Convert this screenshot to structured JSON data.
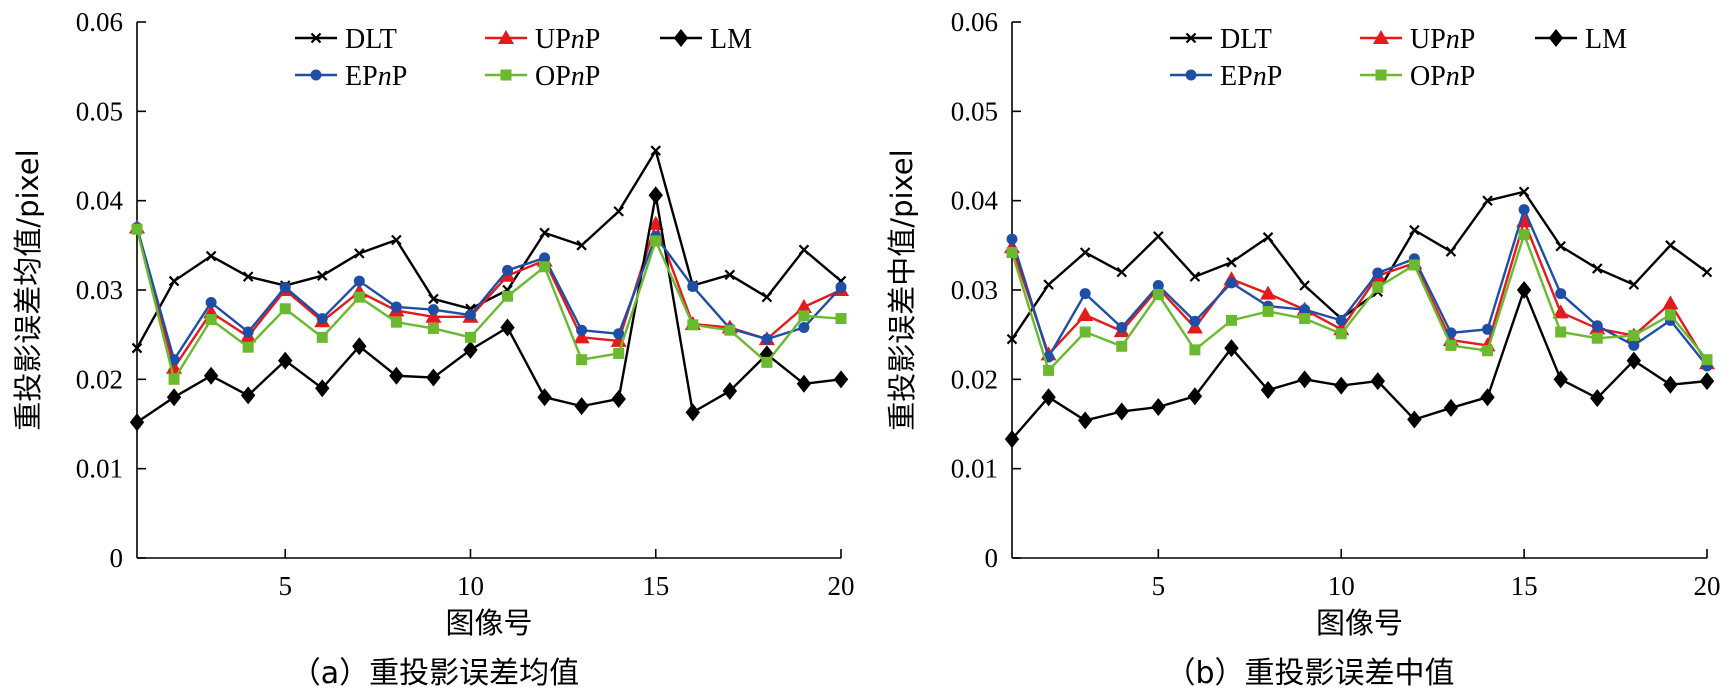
{
  "chart_data": [
    {
      "type": "line",
      "caption": "（a）重投影误差均值",
      "xlabel": "图像号",
      "ylabel": "重投影误差均值/pixel",
      "x": [
        1,
        2,
        3,
        4,
        5,
        6,
        7,
        8,
        9,
        10,
        11,
        12,
        13,
        14,
        15,
        16,
        17,
        18,
        19,
        20
      ],
      "xlim": [
        1,
        20
      ],
      "xticks": [
        5,
        10,
        15,
        20
      ],
      "ylim": [
        0,
        0.06
      ],
      "yticks": [
        0,
        0.01,
        0.02,
        0.03,
        0.04,
        0.05,
        0.06
      ],
      "ytick_labels": [
        "0",
        "0.01",
        "0.02",
        "0.03",
        "0.04",
        "0.05",
        "0.06"
      ],
      "legend_position": "top-center",
      "series": [
        {
          "name": "DLT",
          "name_prefix": "DLT",
          "name_italic": "",
          "name_suffix": "",
          "color": "#000000",
          "marker": "x",
          "values": [
            0.0235,
            0.031,
            0.0338,
            0.0315,
            0.0305,
            0.0316,
            0.0341,
            0.0356,
            0.029,
            0.0279,
            0.03,
            0.0364,
            0.035,
            0.0388,
            0.0456,
            0.0305,
            0.0317,
            0.0292,
            0.0345,
            0.031
          ]
        },
        {
          "name": "UPnP",
          "name_prefix": "UP",
          "name_italic": "n",
          "name_suffix": "P",
          "color": "#e41a1c",
          "marker": "triangle",
          "values": [
            0.037,
            0.0213,
            0.0275,
            0.0248,
            0.03,
            0.0265,
            0.0298,
            0.0277,
            0.027,
            0.027,
            0.0316,
            0.0333,
            0.0247,
            0.0243,
            0.0374,
            0.0262,
            0.0258,
            0.0245,
            0.0281,
            0.03
          ]
        },
        {
          "name": "LM",
          "name_prefix": "LM",
          "name_italic": "",
          "name_suffix": "",
          "color": "#000000",
          "marker": "diamond",
          "values": [
            0.0152,
            0.018,
            0.0204,
            0.0182,
            0.0221,
            0.019,
            0.0237,
            0.0204,
            0.0202,
            0.0233,
            0.0258,
            0.018,
            0.017,
            0.0178,
            0.0406,
            0.0163,
            0.0187,
            0.0228,
            0.0195,
            0.02
          ]
        },
        {
          "name": "EPnP",
          "name_prefix": "EP",
          "name_italic": "n",
          "name_suffix": "P",
          "color": "#1f4ea6",
          "marker": "circle",
          "values": [
            0.037,
            0.0222,
            0.0286,
            0.0253,
            0.0303,
            0.0268,
            0.031,
            0.0281,
            0.0278,
            0.0272,
            0.0322,
            0.0336,
            0.0255,
            0.0251,
            0.036,
            0.0304,
            0.0257,
            0.0245,
            0.0258,
            0.0303
          ]
        },
        {
          "name": "OPnP",
          "name_prefix": "OP",
          "name_italic": "n",
          "name_suffix": "P",
          "color": "#6ab92f",
          "marker": "square",
          "values": [
            0.0368,
            0.02,
            0.0267,
            0.0236,
            0.0279,
            0.0247,
            0.0292,
            0.0264,
            0.0257,
            0.0247,
            0.0293,
            0.0326,
            0.0222,
            0.0229,
            0.0355,
            0.0261,
            0.0255,
            0.0219,
            0.0271,
            0.0268
          ]
        }
      ]
    },
    {
      "type": "line",
      "caption": "（b）重投影误差中值",
      "xlabel": "图像号",
      "ylabel": "重投影误差中值/pixel",
      "x": [
        1,
        2,
        3,
        4,
        5,
        6,
        7,
        8,
        9,
        10,
        11,
        12,
        13,
        14,
        15,
        16,
        17,
        18,
        19,
        20
      ],
      "xlim": [
        1,
        20
      ],
      "xticks": [
        5,
        10,
        15,
        20
      ],
      "ylim": [
        0,
        0.06
      ],
      "yticks": [
        0,
        0.01,
        0.02,
        0.03,
        0.04,
        0.05,
        0.06
      ],
      "ytick_labels": [
        "0",
        "0.01",
        "0.02",
        "0.03",
        "0.04",
        "0.05",
        "0.06"
      ],
      "legend_position": "top-center",
      "series": [
        {
          "name": "DLT",
          "name_prefix": "DLT",
          "name_italic": "",
          "name_suffix": "",
          "color": "#000000",
          "marker": "x",
          "values": [
            0.0245,
            0.0306,
            0.0342,
            0.032,
            0.036,
            0.0315,
            0.0331,
            0.0359,
            0.0305,
            0.0268,
            0.0298,
            0.0367,
            0.0343,
            0.04,
            0.041,
            0.0349,
            0.0324,
            0.0306,
            0.035,
            0.032
          ]
        },
        {
          "name": "UPnP",
          "name_prefix": "UP",
          "name_italic": "n",
          "name_suffix": "P",
          "color": "#e41a1c",
          "marker": "triangle",
          "values": [
            0.0348,
            0.0228,
            0.0272,
            0.0254,
            0.0302,
            0.0258,
            0.0312,
            0.0296,
            0.0278,
            0.0256,
            0.0316,
            0.033,
            0.0244,
            0.0238,
            0.0377,
            0.0275,
            0.0257,
            0.0249,
            0.0285,
            0.0218
          ]
        },
        {
          "name": "LM",
          "name_prefix": "LM",
          "name_italic": "",
          "name_suffix": "",
          "color": "#000000",
          "marker": "diamond",
          "values": [
            0.0133,
            0.018,
            0.0154,
            0.0164,
            0.0169,
            0.0181,
            0.0235,
            0.0188,
            0.02,
            0.0193,
            0.0198,
            0.0155,
            0.0168,
            0.018,
            0.03,
            0.02,
            0.0179,
            0.0221,
            0.0194,
            0.0198
          ]
        },
        {
          "name": "EPnP",
          "name_prefix": "EP",
          "name_italic": "n",
          "name_suffix": "P",
          "color": "#1f4ea6",
          "marker": "circle",
          "values": [
            0.0357,
            0.0225,
            0.0296,
            0.0258,
            0.0305,
            0.0265,
            0.0308,
            0.0282,
            0.0278,
            0.0266,
            0.0319,
            0.0335,
            0.0252,
            0.0256,
            0.039,
            0.0296,
            0.026,
            0.0238,
            0.0266,
            0.0215
          ]
        },
        {
          "name": "OPnP",
          "name_prefix": "OP",
          "name_italic": "n",
          "name_suffix": "P",
          "color": "#6ab92f",
          "marker": "square",
          "values": [
            0.0342,
            0.021,
            0.0253,
            0.0237,
            0.0295,
            0.0233,
            0.0266,
            0.0276,
            0.0268,
            0.0251,
            0.0303,
            0.0328,
            0.0238,
            0.0232,
            0.0362,
            0.0253,
            0.0246,
            0.0249,
            0.0272,
            0.0222
          ]
        }
      ]
    }
  ]
}
